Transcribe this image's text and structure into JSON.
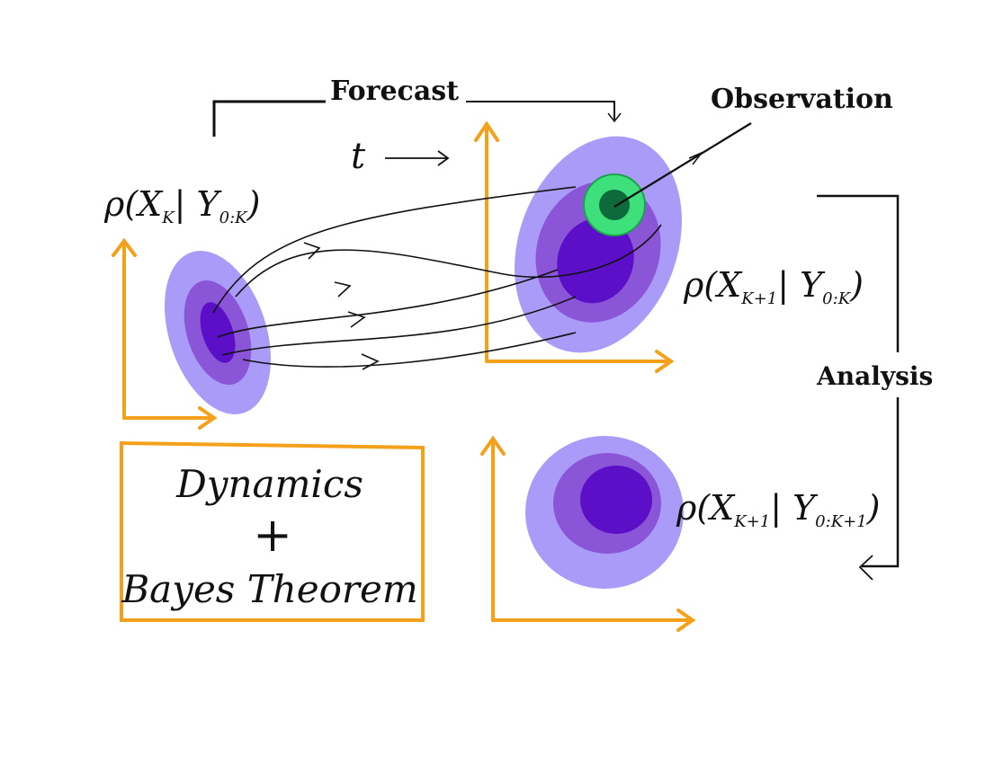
{
  "labels": {
    "forecast": "Forecast",
    "observation": "Observation",
    "analysis": "Analysis",
    "time_symbol": "t"
  },
  "densities": {
    "prior": "ρ(X",
    "prior_sub": "K",
    "prior_cond": "| Y",
    "prior_cond_sub": "0:K",
    "prior_close": ")",
    "forecast_main": "ρ(X",
    "forecast_sub": "K+1",
    "forecast_cond": "| Y",
    "forecast_cond_sub": "0:K",
    "forecast_close": ")",
    "analysis_main": "ρ(X",
    "analysis_sub": "K+1",
    "analysis_cond": "| Y",
    "analysis_cond_sub": "0:K+1",
    "analysis_close": ")"
  },
  "box": {
    "line1": "Dynamics",
    "line2": "+",
    "line3": "Bayes Theorem"
  },
  "colors": {
    "axis": "#f5a01a",
    "outer": "#a99bf7",
    "middle": "#8a55d6",
    "inner": "#5b10c8",
    "obs_outer": "#3de07a",
    "obs_inner": "#0d6a3a",
    "ink": "#111111"
  }
}
